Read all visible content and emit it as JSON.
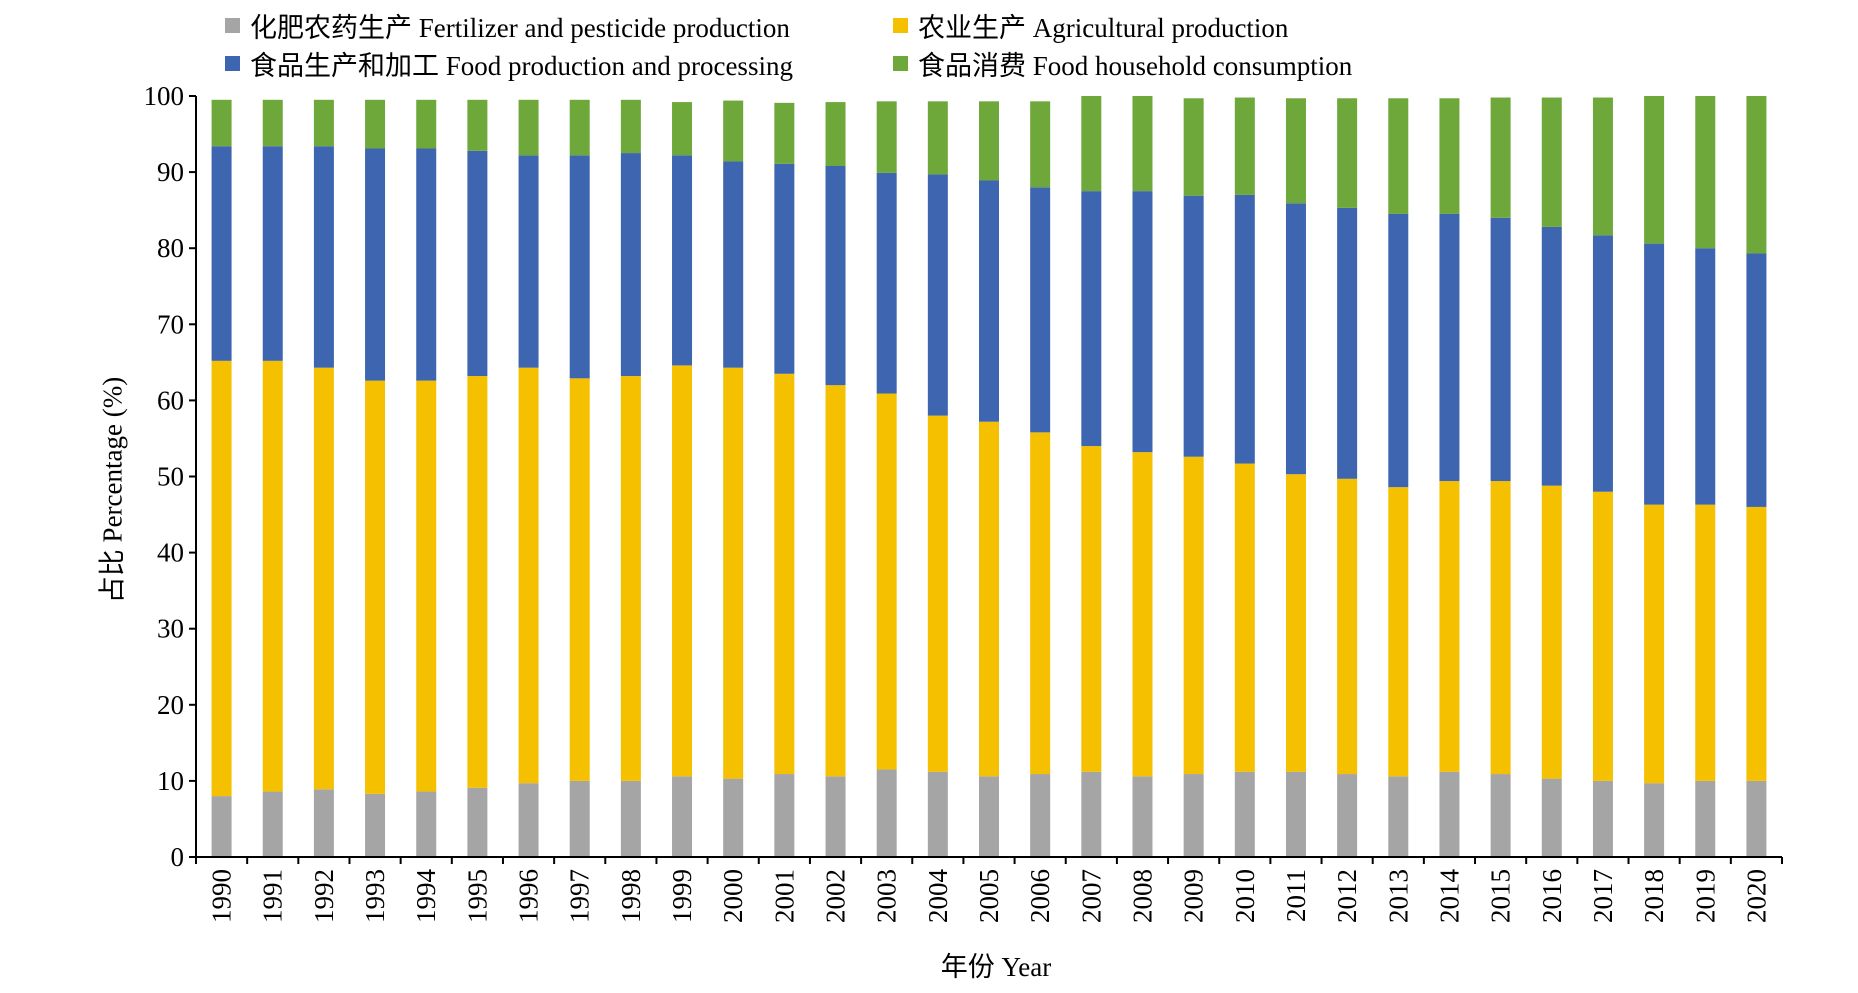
{
  "chart_data": {
    "type": "bar",
    "stacked": true,
    "xlabel": "年份 Year",
    "ylabel": "占比 Percentage (%)",
    "ylim": [
      0,
      100
    ],
    "yticks": [
      0,
      10,
      20,
      30,
      40,
      50,
      60,
      70,
      80,
      90,
      100
    ],
    "categories": [
      "1990",
      "1991",
      "1992",
      "1993",
      "1994",
      "1995",
      "1996",
      "1997",
      "1998",
      "1999",
      "2000",
      "2001",
      "2002",
      "2003",
      "2004",
      "2005",
      "2006",
      "2007",
      "2008",
      "2009",
      "2010",
      "2011",
      "2012",
      "2013",
      "2014",
      "2015",
      "2016",
      "2017",
      "2018",
      "2019",
      "2020"
    ],
    "legend_position": "top",
    "series": [
      {
        "name": "化肥农药生产 Fertilizer and pesticide production",
        "color": "#a5a5a5",
        "values": [
          8.0,
          8.6,
          8.9,
          8.3,
          8.6,
          9.1,
          9.7,
          10.0,
          10.0,
          10.6,
          10.3,
          10.9,
          10.6,
          11.5,
          11.2,
          10.6,
          10.9,
          11.2,
          10.6,
          10.9,
          11.2,
          11.2,
          10.9,
          10.6,
          11.2,
          10.9,
          10.3,
          10.0,
          9.7,
          10.0,
          10.0
        ]
      },
      {
        "name": "农业生产 Agricultural production",
        "color": "#f5c000",
        "values": [
          57.2,
          56.6,
          55.4,
          54.3,
          54.0,
          54.1,
          54.6,
          52.9,
          53.2,
          54.0,
          54.0,
          52.6,
          51.4,
          49.4,
          46.8,
          46.6,
          44.9,
          42.8,
          42.6,
          41.7,
          40.5,
          39.1,
          38.8,
          38.0,
          38.2,
          38.5,
          38.5,
          38.0,
          36.6,
          36.3,
          36.0
        ]
      },
      {
        "name": "食品生产和加工 Food production and processing",
        "color": "#3d65b0",
        "values": [
          28.2,
          28.2,
          29.1,
          30.5,
          30.5,
          29.6,
          27.9,
          29.3,
          29.3,
          27.6,
          27.1,
          27.6,
          28.8,
          29.0,
          31.7,
          31.7,
          32.2,
          33.5,
          34.3,
          34.3,
          35.3,
          35.6,
          35.6,
          35.9,
          35.1,
          34.6,
          34.0,
          33.7,
          34.3,
          33.7,
          33.3
        ]
      },
      {
        "name": "食品消费 Food household consumption",
        "color": "#6ea83a",
        "values": [
          6.1,
          6.1,
          6.1,
          6.4,
          6.4,
          6.7,
          7.3,
          7.3,
          7.0,
          7.0,
          8.0,
          8.0,
          8.4,
          9.4,
          9.6,
          10.4,
          11.3,
          12.5,
          12.5,
          12.8,
          12.8,
          13.8,
          14.4,
          15.2,
          15.2,
          15.8,
          17.0,
          18.1,
          19.4,
          20.0,
          20.7
        ]
      }
    ]
  }
}
